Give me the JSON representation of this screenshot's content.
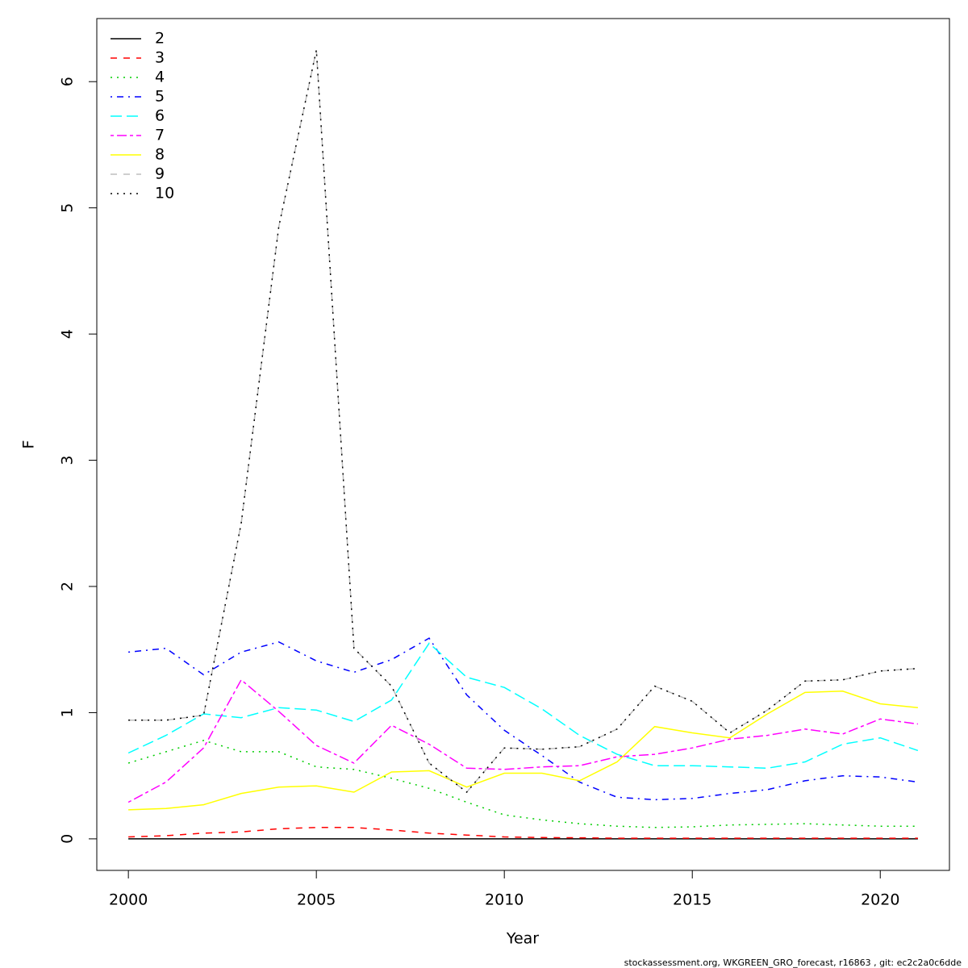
{
  "chart_data": {
    "type": "line",
    "xlabel": "Year",
    "ylabel": "F",
    "footnote": "stockassessment.org, WKGREEN_GRO_forecast, r16863 , git: ec2c2a0c6dde",
    "x": [
      2000,
      2001,
      2002,
      2003,
      2004,
      2005,
      2006,
      2007,
      2008,
      2009,
      2010,
      2011,
      2012,
      2013,
      2014,
      2015,
      2016,
      2017,
      2018,
      2019,
      2020,
      2021
    ],
    "xlim": [
      1999.16,
      2021.84
    ],
    "xticks": [
      2000,
      2005,
      2010,
      2015,
      2020
    ],
    "ylim": [
      -0.25,
      6.5
    ],
    "yticks": [
      0,
      1,
      2,
      3,
      4,
      5,
      6
    ],
    "legend": "topleft",
    "series": [
      {
        "name": "2",
        "color": "#000000",
        "linestyle": "solid",
        "values": [
          0,
          0,
          0,
          0,
          0,
          0,
          0,
          0,
          0,
          0,
          0,
          0,
          0,
          0,
          0,
          0,
          0,
          0,
          0,
          0,
          0,
          0
        ]
      },
      {
        "name": "3",
        "color": "#ff0000",
        "linestyle": "dashed",
        "values": [
          0.015,
          0.025,
          0.045,
          0.055,
          0.08,
          0.09,
          0.09,
          0.07,
          0.045,
          0.03,
          0.015,
          0.01,
          0.008,
          0.005,
          0.005,
          0.005,
          0.005,
          0.005,
          0.005,
          0.005,
          0.005,
          0.005
        ]
      },
      {
        "name": "4",
        "color": "#00cd00",
        "linestyle": "dotted",
        "values": [
          0.6,
          0.69,
          0.78,
          0.69,
          0.69,
          0.57,
          0.55,
          0.48,
          0.4,
          0.29,
          0.19,
          0.15,
          0.12,
          0.1,
          0.09,
          0.095,
          0.11,
          0.115,
          0.12,
          0.11,
          0.1,
          0.1
        ]
      },
      {
        "name": "5",
        "color": "#0000ff",
        "linestyle": "dotdash",
        "values": [
          1.48,
          1.51,
          1.3,
          1.48,
          1.56,
          1.41,
          1.32,
          1.42,
          1.59,
          1.14,
          0.86,
          0.66,
          0.45,
          0.33,
          0.31,
          0.32,
          0.36,
          0.39,
          0.46,
          0.5,
          0.49,
          0.45
        ]
      },
      {
        "name": "6",
        "color": "#00ffff",
        "linestyle": "longdash",
        "values": [
          0.68,
          0.82,
          0.99,
          0.96,
          1.04,
          1.02,
          0.93,
          1.1,
          1.55,
          1.28,
          1.2,
          1.03,
          0.82,
          0.67,
          0.58,
          0.58,
          0.57,
          0.56,
          0.61,
          0.75,
          0.8,
          0.7
        ]
      },
      {
        "name": "7",
        "color": "#ff00ff",
        "linestyle": "twodash",
        "values": [
          0.29,
          0.45,
          0.72,
          1.26,
          1.01,
          0.74,
          0.6,
          0.9,
          0.75,
          0.56,
          0.55,
          0.57,
          0.58,
          0.65,
          0.67,
          0.72,
          0.79,
          0.82,
          0.87,
          0.83,
          0.95,
          0.91
        ]
      },
      {
        "name": "8",
        "color": "#ffff00",
        "linestyle": "solid",
        "values": [
          0.23,
          0.24,
          0.27,
          0.36,
          0.41,
          0.42,
          0.37,
          0.53,
          0.54,
          0.41,
          0.52,
          0.52,
          0.46,
          0.61,
          0.89,
          0.84,
          0.8,
          0.99,
          1.16,
          1.17,
          1.07,
          1.04
        ]
      },
      {
        "name": "9",
        "color": "#bebebe",
        "linestyle": "dashed",
        "values": [
          0.94,
          0.94,
          0.98,
          2.5,
          4.85,
          6.25,
          1.51,
          1.21,
          0.6,
          0.37,
          0.72,
          0.71,
          0.73,
          0.87,
          1.21,
          1.09,
          0.84,
          1.02,
          1.25,
          1.26,
          1.33,
          1.35
        ]
      },
      {
        "name": "10",
        "color": "#000000",
        "linestyle": "dotted",
        "values": [
          0.94,
          0.94,
          0.98,
          2.5,
          4.85,
          6.25,
          1.51,
          1.21,
          0.6,
          0.37,
          0.72,
          0.71,
          0.73,
          0.87,
          1.21,
          1.09,
          0.84,
          1.02,
          1.25,
          1.26,
          1.33,
          1.35
        ]
      }
    ]
  }
}
